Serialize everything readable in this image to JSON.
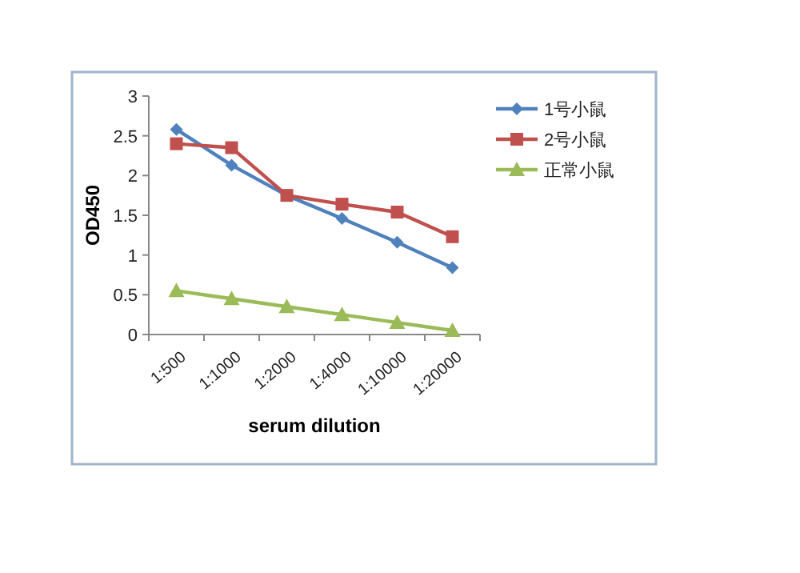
{
  "chart_data": {
    "type": "line",
    "xlabel": "serum dilution",
    "ylabel": "OD450",
    "categories": [
      "1:500",
      "1:1000",
      "1:2000",
      "1:4000",
      "1:10000",
      "1:20000"
    ],
    "series": [
      {
        "name": "1号小鼠",
        "color": "#4f81bd",
        "marker": "diamond",
        "values": [
          2.58,
          2.13,
          1.75,
          1.46,
          1.16,
          0.84
        ]
      },
      {
        "name": "2号小鼠",
        "color": "#c0504d",
        "marker": "square",
        "values": [
          2.4,
          2.35,
          1.75,
          1.64,
          1.54,
          1.23
        ]
      },
      {
        "name": "正常小鼠",
        "color": "#9bbb59",
        "marker": "triangle",
        "values": [
          0.55,
          0.45,
          0.35,
          0.25,
          0.15,
          0.05
        ]
      }
    ],
    "ylim": [
      0,
      3
    ],
    "yticks": [
      0,
      0.5,
      1,
      1.5,
      2,
      2.5,
      3
    ],
    "grid": false,
    "legend": "top right",
    "line_style": "solid"
  }
}
